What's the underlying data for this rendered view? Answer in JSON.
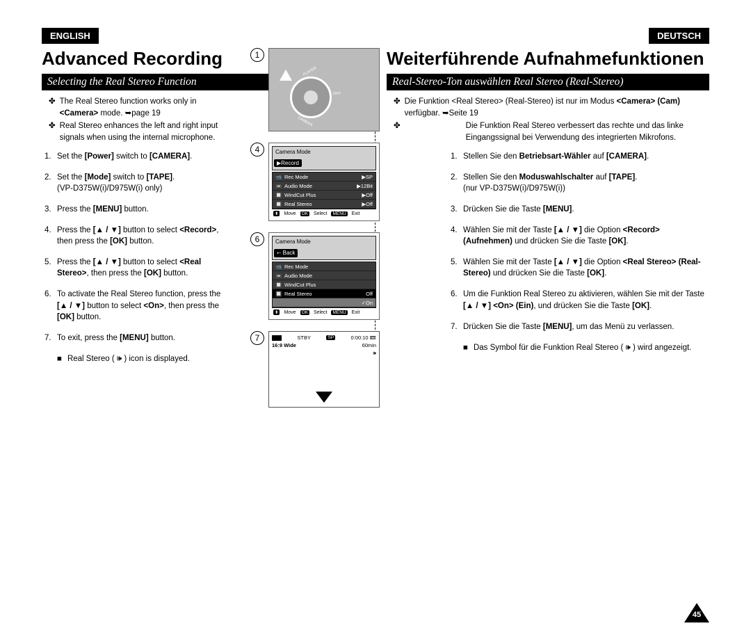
{
  "tabs": {
    "english": "ENGLISH",
    "deutsch": "DEUTSCH"
  },
  "pageNumber": "45",
  "en": {
    "title": "Advanced Recording",
    "subtitle": "Selecting the Real Stereo Function",
    "bullets": [
      "The Real Stereo function works only in <b>&lt;Camera&gt;</b> mode. ➥page 19",
      "Real Stereo enhances the left and right input signals when using the internal microphone."
    ],
    "steps": [
      "Set the <b>[Power]</b> switch to <b>[CAMERA]</b>.",
      "Set the <b>[Mode]</b> switch to <b>[TAPE]</b>.<br>(VP-D375W(i)/D975W(i) only)",
      "Press the <b>[MENU]</b> button.",
      "Press the <b>[▲ / ▼]</b> button to select <b>&lt;Record&gt;</b>, then press the <b>[OK]</b> button.",
      "Press the <b>[▲ / ▼]</b> button to select <b>&lt;Real Stereo&gt;</b>, then press the <b>[OK]</b> button.",
      "To activate the Real Stereo function, press the <b>[▲ / ▼]</b> button to select <b>&lt;On&gt;</b>, then press the <b>[OK]</b> button.",
      "To exit, press the <b>[MENU]</b> button."
    ],
    "note": "Real Stereo ( 🕪 ) icon is displayed."
  },
  "de": {
    "title": "Weiterführende Aufnahmefunktionen",
    "subtitle": "Real-Stereo-Ton auswählen Real Stereo (Real-Stereo)",
    "bullets": [
      "Die Funktion &lt;Real Stereo&gt; (Real-Stereo) ist nur im Modus <b>&lt;Camera&gt; (Cam)</b> verfügbar. ➥Seite 19",
      "Die Funktion Real Stereo verbessert das rechte und das linke Eingangssignal bei Verwendung des integrierten Mikrofons."
    ],
    "steps": [
      "Stellen Sie den <b>Betriebsart-Wähler</b> auf <b>[CAMERA]</b>.",
      "Stellen Sie den <b>Moduswahlschalter</b> auf <b>[TAPE]</b>.<br>(nur VP-D375W(i)/D975W(i))",
      "Drücken Sie die Taste <b>[MENU]</b>.",
      "Wählen Sie mit der Taste <b>[▲ / ▼]</b> die Option <b>&lt;Record&gt; (Aufnehmen)</b> und drücken Sie die Taste <b>[OK]</b>.",
      "Wählen Sie mit der Taste <b>[▲ / ▼]</b> die Option <b>&lt;Real Stereo&gt; (Real-Stereo)</b> und drücken Sie die Taste <b>[OK]</b>.",
      "Um die Funktion Real Stereo zu aktivieren, wählen Sie mit der Taste <b>[▲ / ▼] &lt;On&gt; (Ein)</b>, und drücken Sie die Taste <b>[OK]</b>.",
      "Drücken Sie die Taste <b>[MENU]</b>, um das Menü zu verlassen."
    ],
    "note": "Das Symbol für die Funktion Real Stereo ( 🕪 ) wird angezeigt."
  },
  "figures": {
    "f1": {
      "num": "1",
      "dial": {
        "labels": [
          "PLAYER",
          "OFF",
          "CAMERA"
        ]
      }
    },
    "f4": {
      "num": "4",
      "title": "Camera Mode",
      "submenu": "▶Record",
      "rows": [
        {
          "icon": "📹",
          "label": "Rec Mode",
          "val": "▶SP"
        },
        {
          "icon": "📼",
          "label": "Audio Mode",
          "val": "▶12Bit"
        },
        {
          "icon": "🔲",
          "label": "WindCut Plus",
          "val": "▶Off"
        },
        {
          "icon": "🔲",
          "label": "Real Stereo",
          "val": "▶Off"
        }
      ],
      "foot": {
        "move": "Move",
        "select": "Select",
        "exit": "Exit",
        "move_badge": "⬍",
        "select_badge": "OK",
        "exit_badge": "MENU"
      }
    },
    "f6": {
      "num": "6",
      "title": "Camera Mode",
      "back": "⭠ Back",
      "rows": [
        {
          "icon": "📹",
          "label": "Rec Mode",
          "val": ""
        },
        {
          "icon": "📼",
          "label": "Audio Mode",
          "val": ""
        },
        {
          "icon": "🔲",
          "label": "WindCut Plus",
          "val": ""
        },
        {
          "icon": "🔲",
          "label": "Real Stereo",
          "val": "Off",
          "sel": true
        }
      ],
      "onRow": {
        "val": "✓On"
      },
      "foot": {
        "move": "Move",
        "select": "Select",
        "exit": "Exit",
        "move_badge": "⬍",
        "select_badge": "OK",
        "exit_badge": "MENU"
      }
    },
    "f7": {
      "num": "7",
      "stby": "STBY",
      "sp": "SP",
      "time": "0:00:10",
      "remain": "60min",
      "wide": "16:9 Wide",
      "speaker_icon": "🕪"
    }
  }
}
